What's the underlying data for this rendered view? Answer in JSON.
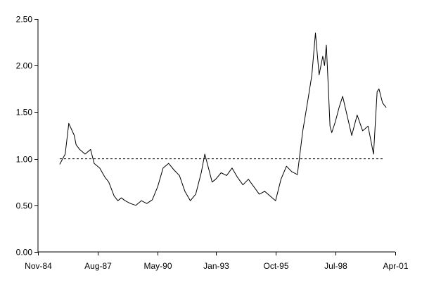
{
  "chart_data": {
    "type": "line",
    "title": "",
    "xlabel": "",
    "ylabel": "",
    "ylim": [
      0,
      2.5
    ],
    "y_ticks": [
      {
        "value": 0.0,
        "label": "0.00"
      },
      {
        "value": 0.5,
        "label": "0.50"
      },
      {
        "value": 1.0,
        "label": "1.00"
      },
      {
        "value": 1.5,
        "label": "1.50"
      },
      {
        "value": 2.0,
        "label": "2.00"
      },
      {
        "value": 2.5,
        "label": "2.50"
      }
    ],
    "x_ticks": [
      {
        "value": "1984-11",
        "label": "Nov-84"
      },
      {
        "value": "1987-08",
        "label": "Aug-87"
      },
      {
        "value": "1990-05",
        "label": "May-90"
      },
      {
        "value": "1993-01",
        "label": "Jan-93"
      },
      {
        "value": "1995-10",
        "label": "Oct-95"
      },
      {
        "value": "1998-07",
        "label": "Jul-98"
      },
      {
        "value": "2001-04",
        "label": "Apr-01"
      }
    ],
    "xlim": [
      "1984-11",
      "2001-04"
    ],
    "grid": false,
    "legend": "none",
    "reference_line": {
      "y": 1.0,
      "x_start": "1985-11",
      "x_end": "2000-09",
      "style": "dashed"
    },
    "series": [
      {
        "color": "#000000",
        "x": [
          "1985-11",
          "1986-02",
          "1986-04",
          "1986-07",
          "1986-08",
          "1986-10",
          "1987-01",
          "1987-04",
          "1987-06",
          "1987-09",
          "1987-12",
          "1988-02",
          "1988-05",
          "1988-07",
          "1988-09",
          "1988-11",
          "1989-02",
          "1989-05",
          "1989-08",
          "1989-11",
          "1990-02",
          "1990-05",
          "1990-08",
          "1990-11",
          "1991-02",
          "1991-05",
          "1991-08",
          "1991-11",
          "1992-02",
          "1992-05",
          "1992-07",
          "1992-09",
          "1992-11",
          "1993-01",
          "1993-04",
          "1993-07",
          "1993-10",
          "1994-01",
          "1994-04",
          "1994-07",
          "1994-10",
          "1995-01",
          "1995-04",
          "1995-07",
          "1995-10",
          "1996-01",
          "1996-04",
          "1996-07",
          "1996-10",
          "1997-01",
          "1997-04",
          "1997-06",
          "1997-08",
          "1997-10",
          "1997-12",
          "1998-01",
          "1998-02",
          "1998-03",
          "1998-04",
          "1998-05",
          "1998-07",
          "1998-09",
          "1998-11",
          "1999-01",
          "1999-04",
          "1999-07",
          "1999-10",
          "2000-01",
          "2000-04",
          "2000-06",
          "2000-07",
          "2000-09",
          "2000-11"
        ],
        "values": [
          0.94,
          1.05,
          1.38,
          1.25,
          1.15,
          1.1,
          1.05,
          1.1,
          0.95,
          0.9,
          0.8,
          0.75,
          0.6,
          0.55,
          0.58,
          0.55,
          0.52,
          0.5,
          0.55,
          0.52,
          0.56,
          0.7,
          0.9,
          0.95,
          0.88,
          0.82,
          0.65,
          0.55,
          0.62,
          0.85,
          1.05,
          0.9,
          0.75,
          0.78,
          0.85,
          0.82,
          0.9,
          0.8,
          0.72,
          0.78,
          0.7,
          0.62,
          0.65,
          0.6,
          0.55,
          0.78,
          0.92,
          0.86,
          0.83,
          1.3,
          1.65,
          1.9,
          2.35,
          1.9,
          2.1,
          2.0,
          2.22,
          1.8,
          1.35,
          1.28,
          1.4,
          1.55,
          1.67,
          1.5,
          1.25,
          1.47,
          1.3,
          1.35,
          1.05,
          1.72,
          1.75,
          1.6,
          1.55
        ]
      }
    ]
  }
}
